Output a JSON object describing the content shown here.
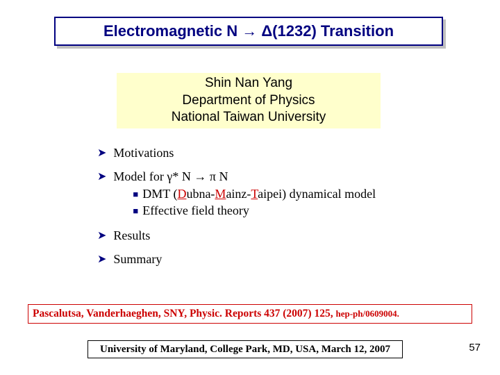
{
  "title": "Electromagnetic N → Δ(1232) Transition",
  "author": {
    "name": "Shin Nan Yang",
    "dept": "Department of Physics",
    "inst": "National Taiwan University"
  },
  "outline": {
    "motivations": "Motivations",
    "model": {
      "prefix": "Model for ",
      "gamma": "γ",
      "star": "* ",
      "n1": "N  →  ",
      "pi": "π",
      "n2": "  N",
      "dmt_pre": "DMT (",
      "dmt_d": "D",
      "dmt_1": "ubna-",
      "dmt_m": "M",
      "dmt_2": "ainz-",
      "dmt_t": "T",
      "dmt_3": "aipei) dynamical model",
      "eft": "Effective field theory"
    },
    "results": "Results",
    "summary": "Summary"
  },
  "reference": {
    "main": "Pascalutsa, Vanderhaeghen, SNY, Physic. Reports 437 (2007) 125, ",
    "arxiv": "hep-ph/0609004."
  },
  "venue": "University of Maryland, College Park, MD, USA, March 12, 2007",
  "page": "57",
  "colors": {
    "navy": "#000080",
    "red": "#cc0000",
    "yellow": "#ffffcc",
    "shadow": "#c0c0c0"
  }
}
